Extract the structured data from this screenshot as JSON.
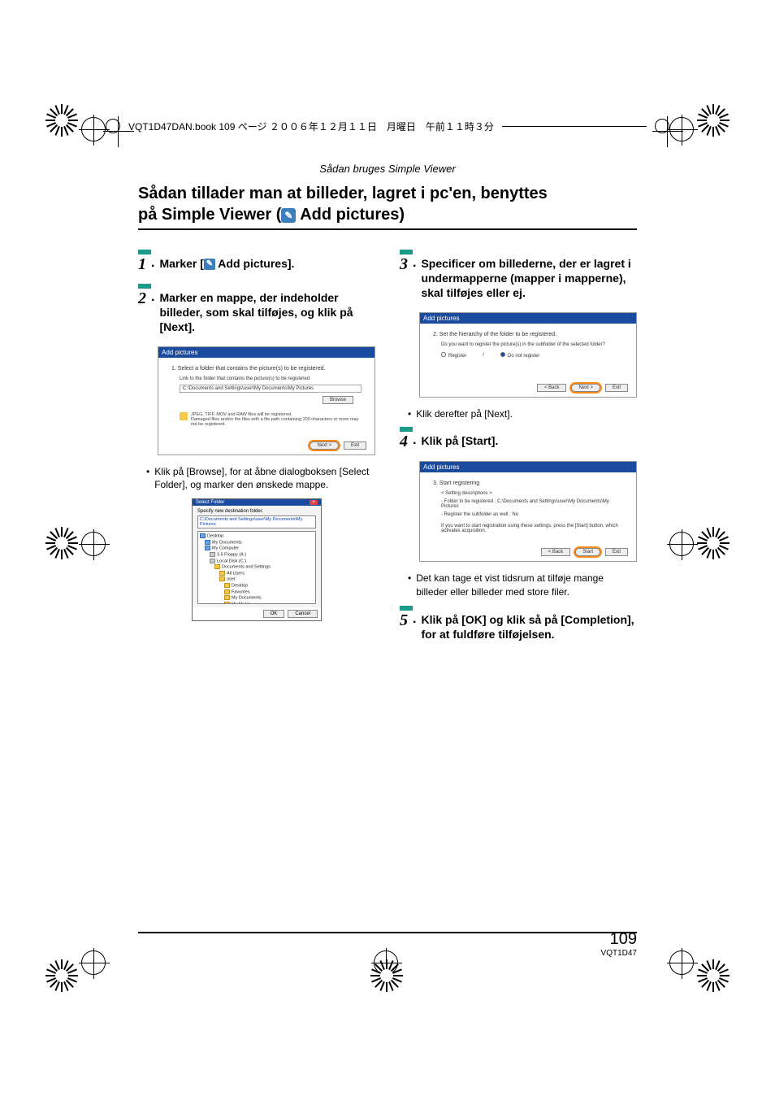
{
  "header": {
    "book_info": "VQT1D47DAN.book  109 ページ  ２００６年１２月１１日　月曜日　午前１１時３分"
  },
  "section_title": "Sådan bruges Simple Viewer",
  "main_title_line1": "Sådan tillader man at billeder, lagret i pc'en, benyttes",
  "main_title_line2_pre": "på Simple Viewer (",
  "main_title_line2_post": " Add pictures)",
  "steps": {
    "s1": {
      "num": "1",
      "text_pre": "Marker [",
      "text_post": " Add pictures]."
    },
    "s2": {
      "num": "2",
      "text": "Marker en mappe, der indeholder billeder, som skal tilføjes, og klik på [Next]."
    },
    "s3": {
      "num": "3",
      "text": "Specificer om billederne, der er lagret i undermapperne (mapper i mapperne), skal tilføjes eller ej."
    },
    "s4": {
      "num": "4",
      "text": "Klik på [Start]."
    },
    "s5": {
      "num": "5",
      "text": "Klik på [OK] og klik så på [Completion], for at fuldføre tilføjelsen."
    }
  },
  "bullets": {
    "b1": "Klik på [Browse], for at åbne dialogboksen [Select Folder], og marker den ønskede mappe.",
    "b2": "Klik derefter på [Next].",
    "b3": "Det kan tage et vist tidsrum at tilføje mange billeder eller billeder med store filer."
  },
  "screenshot1": {
    "title": "Add pictures",
    "heading": "1. Select a folder that contains the picture(s) to be registered.",
    "sub": "Link to the folder that contains the picture(s) to be registered",
    "path": "C:\\Documents and Settings\\user\\My Documents\\My Pictures",
    "browse": "Browse",
    "warn": "JPEG, TIFF, MOV and RAW files will be registered.\nDamaged files and/or the files with a file path containing 200 characters or more may not be registered.",
    "next": "Next >",
    "exit": "Exit"
  },
  "screenshot_dialog": {
    "title": "Select Folder",
    "label": "Specify new destination folder.",
    "path": "C:\\Documents and Settings\\user\\My Documents\\My Pictures",
    "ok": "OK",
    "cancel": "Cancel",
    "tree": [
      {
        "lvl": 0,
        "t": "Desktop",
        "blue": true
      },
      {
        "lvl": 1,
        "t": "My Documents",
        "blue": true
      },
      {
        "lvl": 1,
        "t": "My Computer",
        "blue": true
      },
      {
        "lvl": 2,
        "t": "3.5 Floppy (A:)",
        "drive": true
      },
      {
        "lvl": 2,
        "t": "Local Disk (C:)",
        "drive": true
      },
      {
        "lvl": 3,
        "t": "Documents and Settings"
      },
      {
        "lvl": 4,
        "t": "All Users"
      },
      {
        "lvl": 4,
        "t": "user"
      },
      {
        "lvl": 5,
        "t": "Desktop"
      },
      {
        "lvl": 5,
        "t": "Favorites"
      },
      {
        "lvl": 5,
        "t": "My Documents"
      },
      {
        "lvl": 5,
        "t": "My Music",
        "sel": false
      },
      {
        "lvl": 5,
        "t": "My Pictures",
        "sel": true
      },
      {
        "lvl": 3,
        "t": "WINDOWS"
      },
      {
        "lvl": 2,
        "t": "DVD-RAM Drive",
        "drive": true
      },
      {
        "lvl": 2,
        "t": "Control Panel",
        "blue": true
      },
      {
        "lvl": 2,
        "t": "Local Disk (D:)",
        "drive": true
      }
    ]
  },
  "screenshot2": {
    "title": "Add pictures",
    "heading": "2. Set the hierarchy of the folder to be registered.",
    "question": "Do you want to register the picture(s) in the subfolder of the selected folder?",
    "radio1": "Register",
    "radio2": "Do not register",
    "back": "< Back",
    "next": "Next >",
    "exit": "Exit"
  },
  "screenshot3": {
    "title": "Add pictures",
    "heading": "3. Start registering",
    "sub": "< Setting descriptions >",
    "line1": "- Folder to be registered :  C:\\Documents and Settings\\user\\My Documents\\My Pictures",
    "line2": "- Register the subfolder as well : No",
    "line3": "If you want to start registration using these settings, press the [Start] button, which activates acquisition.",
    "back": "< Back",
    "start": "Start",
    "exit": "Exit"
  },
  "page_number": {
    "big": "109",
    "small": "VQT1D47"
  },
  "colors": {
    "accent_teal": "#1a9b8a",
    "dialog_blue": "#1a4b9e",
    "highlight_orange": "#ff8c1a",
    "icon_blue": "#3b7fbf"
  }
}
